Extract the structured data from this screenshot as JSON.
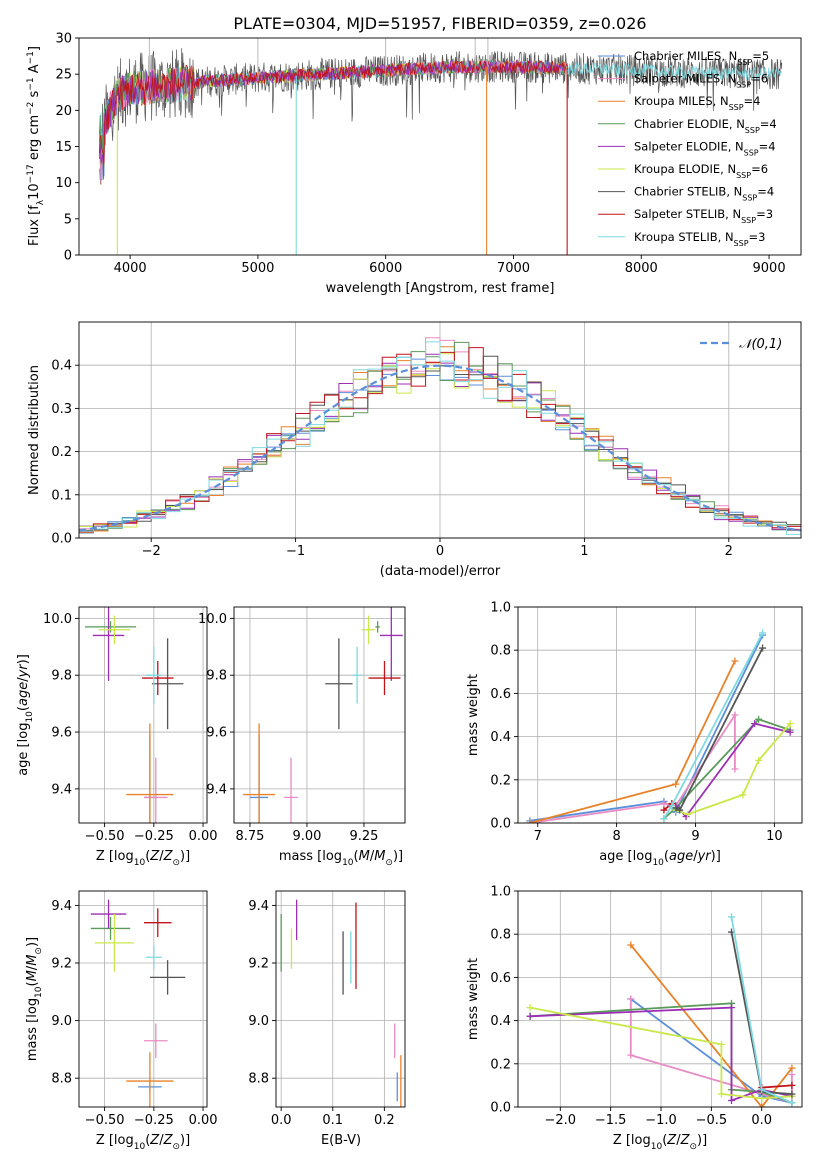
{
  "title": "PLATE=0304, MJD=51957, FIBERID=0359, z=0.026",
  "colors": {
    "Chabrier MILES": "#5b8fd9",
    "Salpeter MILES": "#e88bc4",
    "Kroupa MILES": "#e8822a",
    "Chabrier ELODIE": "#5a9a5a",
    "Salpeter ELODIE": "#9b2fb5",
    "Kroupa ELODIE": "#c9e84a",
    "Chabrier STELIB": "#555555",
    "Salpeter STELIB": "#c0141c",
    "Kroupa STELIB": "#7fd9e0",
    "normal": "#5b8fd9"
  },
  "spectrum": {
    "xlabel": "wavelength [Angstrom, rest frame]",
    "ylabel": "Flux [f_λ10^−17 erg cm^−2 s^−1 A^−1]",
    "xlim": [
      3600,
      9250
    ],
    "ylim": [
      0,
      30
    ],
    "xticks": [
      4000,
      5000,
      6000,
      7000,
      8000,
      9000
    ],
    "yticks": [
      0,
      5,
      10,
      15,
      20,
      25,
      30
    ],
    "legend": [
      {
        "name": "Chabrier MILES",
        "nssp": "5"
      },
      {
        "name": "Salpeter MILES",
        "nssp": "6"
      },
      {
        "name": "Kroupa MILES",
        "nssp": "4"
      },
      {
        "name": "Chabrier ELODIE",
        "nssp": "4"
      },
      {
        "name": "Salpeter ELODIE",
        "nssp": "4"
      },
      {
        "name": "Kroupa ELODIE",
        "nssp": "6"
      },
      {
        "name": "Chabrier STELIB",
        "nssp": "4"
      },
      {
        "name": "Salpeter STELIB",
        "nssp": "3"
      },
      {
        "name": "Kroupa STELIB",
        "nssp": "3"
      }
    ],
    "legend_nssp_prefix": "N",
    "legend_nssp_sub": "SSP",
    "ranges": [
      [
        3760,
        7400
      ],
      [
        3760,
        7400
      ],
      [
        3760,
        7420
      ],
      [
        3760,
        7400
      ],
      [
        3760,
        7400
      ],
      [
        3760,
        7400
      ],
      [
        3760,
        9100
      ],
      [
        3760,
        7430
      ],
      [
        3760,
        9100
      ]
    ],
    "continuum": [
      [
        3760,
        17
      ],
      [
        3900,
        22
      ],
      [
        4000,
        23
      ],
      [
        4300,
        23.5
      ],
      [
        4600,
        24
      ],
      [
        5000,
        24.5
      ],
      [
        5500,
        25
      ],
      [
        6000,
        25.5
      ],
      [
        6500,
        26
      ],
      [
        7000,
        26
      ],
      [
        7500,
        25.8
      ],
      [
        8000,
        25.5
      ],
      [
        8500,
        25.2
      ],
      [
        9100,
        25
      ]
    ],
    "drops": [
      {
        "series": 5,
        "x": 3900,
        "y": 0
      },
      {
        "series": 8,
        "x": 5300,
        "y": 0
      },
      {
        "series": 2,
        "x": 6790,
        "y": 0
      },
      {
        "series": 7,
        "x": 7420,
        "y": 0
      }
    ]
  },
  "residuals": {
    "xlabel": "(data-model)/error",
    "ylabel": "Normed distribution",
    "xlim": [
      -2.5,
      2.5
    ],
    "ylim": [
      0,
      0.5
    ],
    "xticks": [
      -2,
      -1,
      0,
      1,
      2
    ],
    "yticks": [
      0.0,
      0.1,
      0.2,
      0.3,
      0.4
    ],
    "legend_label": "𝒩(0,1)",
    "bin_width": 0.1,
    "bin_start": -2.5
  },
  "chart_data": [
    {
      "type": "scatter",
      "name": "age_vs_Z",
      "xlabel": "Z [log10(Z/Z⊙)]",
      "ylabel": "age [log10(age/yr)]",
      "xlim": [
        -0.63,
        0.02
      ],
      "ylim": [
        9.28,
        10.04
      ],
      "xticks": [
        -0.5,
        -0.25,
        0.0
      ],
      "yticks": [
        9.4,
        9.6,
        9.8,
        10.0
      ],
      "points": [
        {
          "series": "Chabrier MILES",
          "x": -0.27,
          "y": 9.37,
          "xerr": 0.03,
          "yerr": 0.22
        },
        {
          "series": "Salpeter MILES",
          "x": -0.24,
          "y": 9.37,
          "xerr": 0.06,
          "yerr": 0.14
        },
        {
          "series": "Kroupa MILES",
          "x": -0.27,
          "y": 9.38,
          "xerr": 0.12,
          "yerr": 0.25
        },
        {
          "series": "Chabrier ELODIE",
          "x": -0.47,
          "y": 9.97,
          "xerr": 0.13,
          "yerr": 0.02
        },
        {
          "series": "Salpeter ELODIE",
          "x": -0.48,
          "y": 9.94,
          "xerr": 0.08,
          "yerr": 0.16
        },
        {
          "series": "Kroupa ELODIE",
          "x": -0.45,
          "y": 9.96,
          "xerr": 0.08,
          "yerr": 0.05
        },
        {
          "series": "Chabrier STELIB",
          "x": -0.18,
          "y": 9.77,
          "xerr": 0.08,
          "yerr": 0.16
        },
        {
          "series": "Salpeter STELIB",
          "x": -0.23,
          "y": 9.79,
          "xerr": 0.08,
          "yerr": 0.06
        },
        {
          "series": "Kroupa STELIB",
          "x": -0.25,
          "y": 9.8,
          "xerr": 0.04,
          "yerr": 0.1
        }
      ]
    },
    {
      "type": "scatter",
      "name": "age_vs_mass",
      "xlabel": "mass [log10(M/M⊙)]",
      "ylabel": "",
      "xlim": [
        8.68,
        9.43
      ],
      "ylim": [
        9.28,
        10.04
      ],
      "xticks": [
        8.75,
        9.0,
        9.25
      ],
      "yticks": [
        9.4,
        9.6,
        9.8,
        10.0
      ],
      "points": [
        {
          "series": "Chabrier MILES",
          "x": 8.79,
          "y": 9.37,
          "xerr": 0.04,
          "yerr": 0.22
        },
        {
          "series": "Salpeter MILES",
          "x": 8.93,
          "y": 9.37,
          "xerr": 0.03,
          "yerr": 0.14
        },
        {
          "series": "Kroupa MILES",
          "x": 8.79,
          "y": 9.38,
          "xerr": 0.07,
          "yerr": 0.25
        },
        {
          "series": "Chabrier ELODIE",
          "x": 9.31,
          "y": 9.97,
          "xerr": 0.01,
          "yerr": 0.02
        },
        {
          "series": "Salpeter ELODIE",
          "x": 9.37,
          "y": 9.94,
          "xerr": 0.05,
          "yerr": 0.16
        },
        {
          "series": "Kroupa ELODIE",
          "x": 9.27,
          "y": 9.96,
          "xerr": 0.03,
          "yerr": 0.05
        },
        {
          "series": "Chabrier STELIB",
          "x": 9.14,
          "y": 9.77,
          "xerr": 0.06,
          "yerr": 0.16
        },
        {
          "series": "Salpeter STELIB",
          "x": 9.34,
          "y": 9.79,
          "xerr": 0.07,
          "yerr": 0.06
        },
        {
          "series": "Kroupa STELIB",
          "x": 9.22,
          "y": 9.8,
          "xerr": 0.02,
          "yerr": 0.1
        }
      ]
    },
    {
      "type": "line",
      "name": "massweight_vs_age",
      "xlabel": "age [log10(age/yr)]",
      "ylabel": "mass weight",
      "xlim": [
        6.75,
        10.35
      ],
      "ylim": [
        0,
        1
      ],
      "xticks": [
        7,
        8,
        9,
        10
      ],
      "yticks": [
        0.0,
        0.2,
        0.4,
        0.6,
        0.8,
        1.0
      ],
      "series": [
        {
          "name": "Chabrier MILES",
          "x": [
            6.9,
            8.6,
            8.75,
            9.85
          ],
          "y": [
            0.01,
            0.1,
            0.05,
            0.87
          ]
        },
        {
          "name": "Salpeter MILES",
          "x": [
            6.9,
            8.6,
            8.75,
            9.5,
            9.5
          ],
          "y": [
            0.0,
            0.09,
            0.08,
            0.5,
            0.25
          ]
        },
        {
          "name": "Kroupa MILES",
          "x": [
            6.9,
            8.75,
            9.5
          ],
          "y": [
            0.0,
            0.18,
            0.75
          ]
        },
        {
          "name": "Chabrier ELODIE",
          "x": [
            8.6,
            8.75,
            9.8,
            10.2
          ],
          "y": [
            0.02,
            0.07,
            0.48,
            0.43
          ]
        },
        {
          "name": "Salpeter ELODIE",
          "x": [
            8.75,
            8.88,
            9.75,
            10.2
          ],
          "y": [
            0.08,
            0.03,
            0.46,
            0.42
          ]
        },
        {
          "name": "Kroupa ELODIE",
          "x": [
            8.75,
            8.9,
            9.6,
            9.8,
            10.2
          ],
          "y": [
            0.06,
            0.04,
            0.13,
            0.29,
            0.46
          ]
        },
        {
          "name": "Chabrier STELIB",
          "x": [
            8.75,
            8.8,
            9.85
          ],
          "y": [
            0.07,
            0.06,
            0.81
          ]
        },
        {
          "name": "Salpeter STELIB",
          "x": [
            8.6,
            8.7
          ],
          "y": [
            0.06,
            0.09
          ]
        },
        {
          "name": "Kroupa STELIB",
          "x": [
            8.6,
            8.7,
            9.85
          ],
          "y": [
            0.02,
            0.08,
            0.88
          ]
        }
      ]
    },
    {
      "type": "scatter",
      "name": "mass_vs_Z",
      "xlabel": "Z [log10(Z/Z⊙)]",
      "ylabel": "mass [log10(M/M⊙)]",
      "xlim": [
        -0.63,
        0.02
      ],
      "ylim": [
        8.7,
        9.45
      ],
      "xticks": [
        -0.5,
        -0.25,
        0.0
      ],
      "yticks": [
        8.8,
        9.0,
        9.2,
        9.4
      ],
      "points": [
        {
          "series": "Chabrier MILES",
          "x": -0.27,
          "y": 8.77,
          "xerr": 0.06,
          "yerr": 0.02
        },
        {
          "series": "Salpeter MILES",
          "x": -0.24,
          "y": 8.93,
          "xerr": 0.06,
          "yerr": 0.06
        },
        {
          "series": "Kroupa MILES",
          "x": -0.27,
          "y": 8.79,
          "xerr": 0.12,
          "yerr": 0.1
        },
        {
          "series": "Chabrier ELODIE",
          "x": -0.47,
          "y": 9.32,
          "xerr": 0.1,
          "yerr": 0.04
        },
        {
          "series": "Salpeter ELODIE",
          "x": -0.48,
          "y": 9.37,
          "xerr": 0.09,
          "yerr": 0.05
        },
        {
          "series": "Kroupa ELODIE",
          "x": -0.45,
          "y": 9.27,
          "xerr": 0.1,
          "yerr": 0.1
        },
        {
          "series": "Chabrier STELIB",
          "x": -0.18,
          "y": 9.15,
          "xerr": 0.09,
          "yerr": 0.06
        },
        {
          "series": "Salpeter STELIB",
          "x": -0.23,
          "y": 9.34,
          "xerr": 0.07,
          "yerr": 0.05
        },
        {
          "series": "Kroupa STELIB",
          "x": -0.25,
          "y": 9.22,
          "xerr": 0.04,
          "yerr": 0.04
        }
      ]
    },
    {
      "type": "scatter",
      "name": "mass_vs_ebv",
      "xlabel": "E(B-V)",
      "ylabel": "",
      "xlim": [
        -0.01,
        0.24
      ],
      "ylim": [
        8.7,
        9.45
      ],
      "xticks": [
        0.0,
        0.1,
        0.2
      ],
      "yticks": [
        8.8,
        9.0,
        9.2,
        9.4
      ],
      "points": [
        {
          "series": "Chabrier MILES",
          "x": 0.225,
          "y": 8.77,
          "xerr": 0,
          "yerr": 0.05
        },
        {
          "series": "Salpeter MILES",
          "x": 0.22,
          "y": 8.93,
          "xerr": 0,
          "yerr": 0.06
        },
        {
          "series": "Kroupa MILES",
          "x": 0.232,
          "y": 8.79,
          "xerr": 0,
          "yerr": 0.09
        },
        {
          "series": "Chabrier ELODIE",
          "x": 0.0,
          "y": 9.27,
          "xerr": 0,
          "yerr": 0.1
        },
        {
          "series": "Salpeter ELODIE",
          "x": 0.03,
          "y": 9.35,
          "xerr": 0,
          "yerr": 0.07
        },
        {
          "series": "Kroupa ELODIE",
          "x": 0.02,
          "y": 9.25,
          "xerr": 0,
          "yerr": 0.07
        },
        {
          "series": "Chabrier STELIB",
          "x": 0.12,
          "y": 9.2,
          "xerr": 0,
          "yerr": 0.11
        },
        {
          "series": "Salpeter STELIB",
          "x": 0.145,
          "y": 9.26,
          "xerr": 0,
          "yerr": 0.15
        },
        {
          "series": "Kroupa STELIB",
          "x": 0.135,
          "y": 9.22,
          "xerr": 0,
          "yerr": 0.09
        }
      ]
    },
    {
      "type": "line",
      "name": "massweight_vs_Z",
      "xlabel": "Z [log10(Z/Z⊙)]",
      "ylabel": "mass weight",
      "xlim": [
        -2.42,
        0.4
      ],
      "ylim": [
        0,
        1
      ],
      "xticks": [
        -2.0,
        -1.5,
        -1.0,
        -0.5,
        0.0
      ],
      "yticks": [
        0.0,
        0.2,
        0.4,
        0.6,
        0.8,
        1.0
      ],
      "series": [
        {
          "name": "Chabrier MILES",
          "x": [
            -1.3,
            0.0,
            0.3
          ],
          "y": [
            0.5,
            0.05,
            0.02
          ]
        },
        {
          "name": "Salpeter MILES",
          "x": [
            -1.3,
            -1.3,
            0.3,
            0.3
          ],
          "y": [
            0.5,
            0.24,
            0.02,
            0.15
          ]
        },
        {
          "name": "Kroupa MILES",
          "x": [
            -1.3,
            0.0,
            0.3
          ],
          "y": [
            0.75,
            0.0,
            0.18
          ]
        },
        {
          "name": "Chabrier ELODIE",
          "x": [
            -2.3,
            -0.3,
            -0.3,
            0.0,
            0.3
          ],
          "y": [
            0.42,
            0.48,
            0.08,
            0.07,
            0.02
          ]
        },
        {
          "name": "Salpeter ELODIE",
          "x": [
            -2.3,
            -0.3,
            -0.3,
            0.0,
            0.3
          ],
          "y": [
            0.42,
            0.46,
            0.03,
            0.08,
            0.05
          ]
        },
        {
          "name": "Kroupa ELODIE",
          "x": [
            -2.3,
            -0.4,
            -0.4,
            0.0,
            0.3
          ],
          "y": [
            0.46,
            0.29,
            0.06,
            0.04,
            0.05
          ]
        },
        {
          "name": "Chabrier STELIB",
          "x": [
            -0.3,
            0.0,
            0.3
          ],
          "y": [
            0.81,
            0.07,
            0.06
          ]
        },
        {
          "name": "Salpeter STELIB",
          "x": [
            0.0,
            0.3
          ],
          "y": [
            0.09,
            0.1
          ]
        },
        {
          "name": "Kroupa STELIB",
          "x": [
            -0.3,
            0.0,
            0.3
          ],
          "y": [
            0.88,
            0.08,
            0.02
          ]
        }
      ]
    }
  ]
}
